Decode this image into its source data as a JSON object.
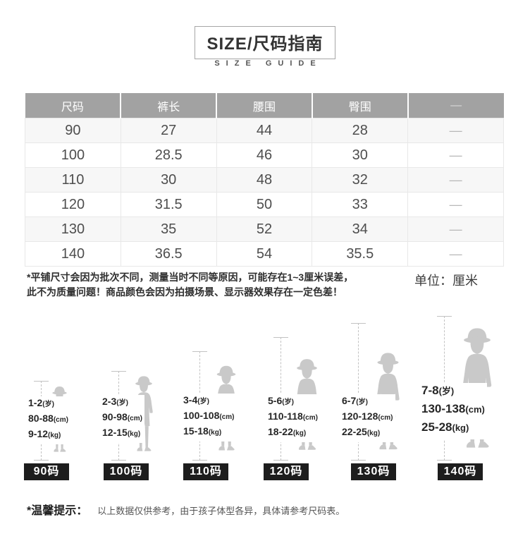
{
  "header": {
    "title": "SIZE/尺码指南",
    "subtitle": "SIZE GUIDE"
  },
  "size_table": {
    "columns": [
      "尺码",
      "裤长",
      "腰围",
      "臀围",
      "—"
    ],
    "rows": [
      [
        "90",
        "27",
        "44",
        "28",
        "—"
      ],
      [
        "100",
        "28.5",
        "46",
        "30",
        "—"
      ],
      [
        "110",
        "30",
        "48",
        "32",
        "—"
      ],
      [
        "120",
        "31.5",
        "50",
        "33",
        "—"
      ],
      [
        "130",
        "35",
        "52",
        "34",
        "—"
      ],
      [
        "140",
        "36.5",
        "54",
        "35.5",
        "—"
      ]
    ]
  },
  "notes": {
    "line1": "*平铺尺寸会因为批次不同，测量当时不同等原因，可能存在1~3厘米误差，",
    "line2": "此不为质量问题！商品颜色会因为拍摄场景、显示器效果存在一定色差！",
    "unit": "单位：厘米"
  },
  "size_figures": [
    {
      "age": "1-2",
      "age_unit": "(岁)",
      "height": "80-88",
      "height_unit": "(cm)",
      "weight": "9-12",
      "weight_unit": "(kg)",
      "label": "90码"
    },
    {
      "age": "2-3",
      "age_unit": "(岁)",
      "height": "90-98",
      "height_unit": "(cm)",
      "weight": "12-15",
      "weight_unit": "(kg)",
      "label": "100码"
    },
    {
      "age": "3-4",
      "age_unit": "(岁)",
      "height": "100-108",
      "height_unit": "(cm)",
      "weight": "15-18",
      "weight_unit": "(kg)",
      "label": "110码"
    },
    {
      "age": "5-6",
      "age_unit": "(岁)",
      "height": "110-118",
      "height_unit": "(cm)",
      "weight": "18-22",
      "weight_unit": "(kg)",
      "label": "120码"
    },
    {
      "age": "6-7",
      "age_unit": "(岁)",
      "height": "120-128",
      "height_unit": "(cm)",
      "weight": "22-25",
      "weight_unit": "(kg)",
      "label": "130码"
    },
    {
      "age": "7-8",
      "age_unit": "(岁)",
      "height": "130-138",
      "height_unit": "(cm)",
      "weight": "25-28",
      "weight_unit": "(kg)",
      "label": "140码"
    }
  ],
  "footer": {
    "tip_label": "*温馨提示：",
    "tip_text": "以上数据仅供参考，由于孩子体型各异，具体请参考尺码表。"
  },
  "colors": {
    "table-header-bg": "#a2a2a2",
    "table-header-text": "#ffffff",
    "row-alt": "#f7f7f7",
    "table-border": "#e8e8e8",
    "cell-text": "#4e4e4e",
    "dash": "#b8b8b8",
    "header-dash": "#dedede",
    "badge-bg": "#1d1d1d",
    "badge-text": "#ffffff",
    "silhouette": "#c9c9c9",
    "measure": "#c2c2c2",
    "text-dark": "#2f2f2f",
    "text-mid": "#555555"
  }
}
